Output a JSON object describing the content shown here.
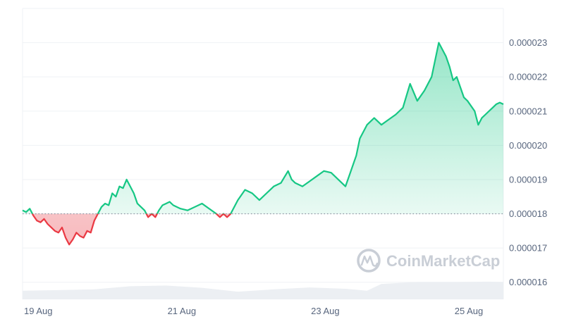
{
  "chart_data": {
    "type": "area",
    "title": "",
    "xlabel": "",
    "ylabel": "",
    "x_ticks": [
      "19 Aug",
      "21 Aug",
      "23 Aug",
      "25 Aug"
    ],
    "x_tick_positions_days": [
      0.0,
      2.0,
      4.0,
      6.0
    ],
    "x_range_days": [
      0.0,
      6.7
    ],
    "y_ticks": [
      "0.000016",
      "0.000017",
      "0.000018",
      "0.000019",
      "0.000020",
      "0.000021",
      "0.000022",
      "0.000023"
    ],
    "y_tick_values": [
      1.6e-05,
      1.7e-05,
      1.8e-05,
      1.9e-05,
      2e-05,
      2.1e-05,
      2.2e-05,
      2.3e-05
    ],
    "ylim": [
      1.55e-05,
      2.4e-05
    ],
    "baseline": 1.8e-05,
    "grid": true,
    "colors": {
      "up": "#16c784",
      "down": "#ea3943",
      "volume": "#eceff3"
    },
    "watermark": "CoinMarketCap",
    "series": [
      {
        "x": [
          0.0,
          0.05,
          0.1,
          0.15,
          0.2,
          0.25,
          0.3,
          0.35,
          0.4,
          0.45,
          0.5,
          0.55,
          0.6,
          0.65,
          0.7,
          0.75,
          0.8,
          0.85,
          0.9,
          0.95,
          1.0,
          1.05,
          1.1,
          1.15,
          1.2,
          1.25,
          1.3,
          1.35,
          1.4,
          1.45,
          1.5,
          1.55,
          1.6,
          1.65,
          1.7,
          1.75,
          1.8,
          1.85,
          1.9,
          1.95,
          2.0,
          2.05,
          2.1,
          2.2,
          2.3,
          2.4,
          2.5,
          2.6,
          2.7,
          2.75,
          2.8,
          2.85,
          2.9,
          3.0,
          3.1,
          3.2,
          3.3,
          3.4,
          3.5,
          3.6,
          3.7,
          3.75,
          3.8,
          3.9,
          4.0,
          4.1,
          4.2,
          4.3,
          4.4,
          4.5,
          4.55,
          4.6,
          4.65,
          4.7,
          4.8,
          4.9,
          5.0,
          5.1,
          5.2,
          5.3,
          5.4,
          5.5,
          5.6,
          5.7,
          5.8,
          5.9,
          5.95,
          6.0,
          6.05,
          6.1,
          6.15,
          6.2,
          6.3,
          6.35,
          6.4,
          6.45,
          6.5,
          6.55,
          6.6,
          6.65,
          6.7
        ],
        "y": [
          1.81e-05,
          1.805e-05,
          1.815e-05,
          1.795e-05,
          1.78e-05,
          1.775e-05,
          1.785e-05,
          1.77e-05,
          1.76e-05,
          1.75e-05,
          1.745e-05,
          1.76e-05,
          1.73e-05,
          1.71e-05,
          1.725e-05,
          1.745e-05,
          1.735e-05,
          1.73e-05,
          1.75e-05,
          1.745e-05,
          1.78e-05,
          1.8e-05,
          1.82e-05,
          1.83e-05,
          1.825e-05,
          1.86e-05,
          1.85e-05,
          1.88e-05,
          1.875e-05,
          1.9e-05,
          1.88e-05,
          1.86e-05,
          1.83e-05,
          1.82e-05,
          1.81e-05,
          1.79e-05,
          1.8e-05,
          1.79e-05,
          1.81e-05,
          1.825e-05,
          1.83e-05,
          1.835e-05,
          1.825e-05,
          1.815e-05,
          1.81e-05,
          1.82e-05,
          1.83e-05,
          1.815e-05,
          1.8e-05,
          1.79e-05,
          1.8e-05,
          1.79e-05,
          1.8e-05,
          1.84e-05,
          1.87e-05,
          1.86e-05,
          1.84e-05,
          1.86e-05,
          1.88e-05,
          1.89e-05,
          1.925e-05,
          1.9e-05,
          1.89e-05,
          1.88e-05,
          1.895e-05,
          1.91e-05,
          1.925e-05,
          1.92e-05,
          1.9e-05,
          1.88e-05,
          1.91e-05,
          1.94e-05,
          1.97e-05,
          2.02e-05,
          2.06e-05,
          2.08e-05,
          2.06e-05,
          2.075e-05,
          2.09e-05,
          2.11e-05,
          2.18e-05,
          2.13e-05,
          2.16e-05,
          2.2e-05,
          2.3e-05,
          2.26e-05,
          2.23e-05,
          2.19e-05,
          2.2e-05,
          2.17e-05,
          2.14e-05,
          2.13e-05,
          2.1e-05,
          2.06e-05,
          2.08e-05,
          2.09e-05,
          2.1e-05,
          2.11e-05,
          2.12e-05,
          2.125e-05,
          2.12e-05
        ]
      }
    ],
    "volume": {
      "x": [
        0.0,
        0.5,
        1.0,
        1.5,
        2.0,
        2.5,
        3.0,
        3.5,
        4.0,
        4.5,
        4.8,
        5.0,
        5.5,
        6.0,
        6.5,
        6.7
      ],
      "y": [
        0.45,
        0.48,
        0.52,
        0.68,
        0.72,
        0.6,
        0.4,
        0.52,
        0.62,
        0.55,
        0.45,
        0.8,
        0.9,
        0.9,
        0.92,
        0.9
      ]
    }
  }
}
